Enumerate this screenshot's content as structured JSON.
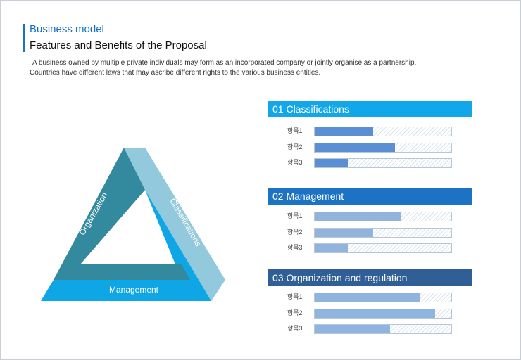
{
  "header": {
    "title": "Business model",
    "subtitle": "Features and Benefits of the Proposal",
    "description_line1": "A business owned by multiple private individuals may form as an incorporated company or jointly organise as a partnership.",
    "description_line2": "Countries have different laws that may ascribe different rights to the various business entities."
  },
  "triangle": {
    "left_label": "Organization",
    "right_label": "Classifications",
    "bottom_label": "Management",
    "colors": {
      "left": "#338a9f",
      "right": "#93c9dc",
      "bottom": "#0fa6e6"
    }
  },
  "sections": [
    {
      "title": "01 Classifications",
      "header_color": "#12a7e8",
      "bar_color": "#5b8fd3",
      "items": [
        {
          "label": "항목1",
          "value": 0.43
        },
        {
          "label": "항목2",
          "value": 0.59
        },
        {
          "label": "항목3",
          "value": 0.24
        }
      ]
    },
    {
      "title": "02 Management",
      "header_color": "#1c73c4",
      "bar_color": "#92b3da",
      "items": [
        {
          "label": "항목1",
          "value": 0.63
        },
        {
          "label": "항목2",
          "value": 0.43
        },
        {
          "label": "항목3",
          "value": 0.24
        }
      ]
    },
    {
      "title": "03 Organization and regulation",
      "header_color": "#2f5f95",
      "bar_color": "#8fb4e0",
      "items": [
        {
          "label": "항목1",
          "value": 0.77
        },
        {
          "label": "항목2",
          "value": 0.88
        },
        {
          "label": "항목3",
          "value": 0.55
        }
      ]
    }
  ]
}
